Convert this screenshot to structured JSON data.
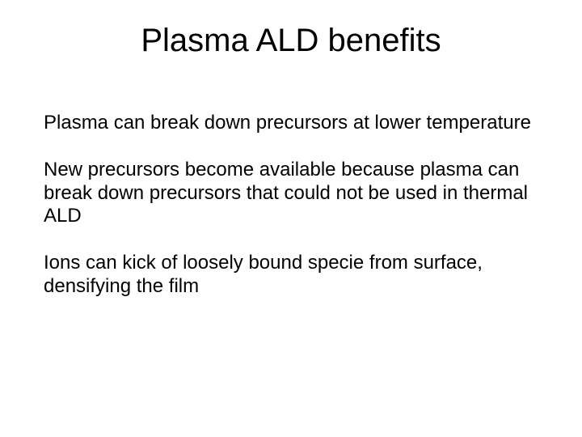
{
  "slide": {
    "title": "Plasma ALD benefits",
    "paragraphs": [
      "Plasma can break down precursors at lower temperature",
      "New precursors become available because plasma can break down precursors that could not be used in thermal ALD",
      "Ions can kick of loosely bound specie from surface, densifying the film"
    ]
  },
  "style": {
    "background_color": "#ffffff",
    "text_color": "#000000",
    "title_fontsize": 40,
    "body_fontsize": 24,
    "font_family": "Arial"
  }
}
